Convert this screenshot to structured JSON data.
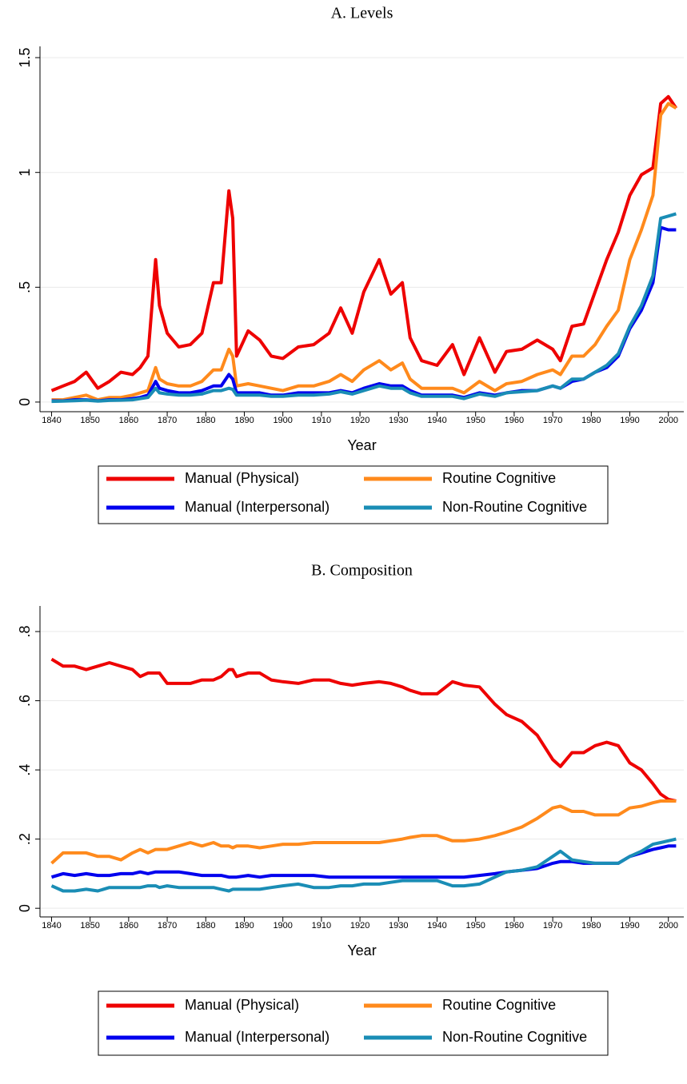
{
  "chart_data": [
    {
      "type": "line",
      "title": "A. Levels",
      "x_label": "Year",
      "grid": true,
      "x": [
        1840,
        1843,
        1846,
        1849,
        1852,
        1855,
        1858,
        1861,
        1863,
        1865,
        1867,
        1868,
        1870,
        1873,
        1876,
        1879,
        1882,
        1884,
        1886,
        1887,
        1888,
        1891,
        1894,
        1897,
        1900,
        1904,
        1908,
        1912,
        1915,
        1918,
        1921,
        1925,
        1928,
        1931,
        1933,
        1936,
        1940,
        1944,
        1947,
        1951,
        1955,
        1958,
        1962,
        1966,
        1970,
        1972,
        1975,
        1978,
        1981,
        1984,
        1987,
        1990,
        1993,
        1996,
        1998,
        2000,
        2002
      ],
      "series": [
        {
          "name": "Manual (Physical)",
          "color": "#ee0000",
          "values": [
            0.05,
            0.07,
            0.09,
            0.13,
            0.06,
            0.09,
            0.13,
            0.12,
            0.15,
            0.2,
            0.62,
            0.42,
            0.3,
            0.24,
            0.25,
            0.3,
            0.52,
            0.52,
            0.92,
            0.8,
            0.2,
            0.31,
            0.27,
            0.2,
            0.19,
            0.24,
            0.25,
            0.3,
            0.41,
            0.3,
            0.48,
            0.62,
            0.47,
            0.52,
            0.28,
            0.18,
            0.16,
            0.25,
            0.12,
            0.28,
            0.13,
            0.22,
            0.23,
            0.27,
            0.23,
            0.18,
            0.33,
            0.34,
            0.48,
            0.62,
            0.74,
            0.9,
            0.99,
            1.02,
            1.3,
            1.33,
            1.28
          ]
        },
        {
          "name": "Routine Cognitive",
          "color": "#ff8a1c",
          "values": [
            0.01,
            0.01,
            0.02,
            0.03,
            0.01,
            0.02,
            0.02,
            0.03,
            0.04,
            0.05,
            0.15,
            0.1,
            0.08,
            0.07,
            0.07,
            0.09,
            0.14,
            0.14,
            0.23,
            0.2,
            0.07,
            0.08,
            0.07,
            0.06,
            0.05,
            0.07,
            0.07,
            0.09,
            0.12,
            0.09,
            0.14,
            0.18,
            0.14,
            0.17,
            0.1,
            0.06,
            0.06,
            0.06,
            0.04,
            0.09,
            0.05,
            0.08,
            0.09,
            0.12,
            0.14,
            0.12,
            0.2,
            0.2,
            0.25,
            0.33,
            0.4,
            0.62,
            0.75,
            0.9,
            1.25,
            1.3,
            1.28
          ]
        },
        {
          "name": "Manual (Interpersonal)",
          "color": "#0000ee",
          "values": [
            0.005,
            0.005,
            0.01,
            0.01,
            0.005,
            0.01,
            0.01,
            0.015,
            0.02,
            0.03,
            0.09,
            0.06,
            0.05,
            0.04,
            0.04,
            0.05,
            0.07,
            0.07,
            0.12,
            0.1,
            0.04,
            0.04,
            0.04,
            0.03,
            0.03,
            0.04,
            0.04,
            0.04,
            0.05,
            0.04,
            0.06,
            0.08,
            0.07,
            0.07,
            0.05,
            0.03,
            0.03,
            0.03,
            0.02,
            0.04,
            0.03,
            0.04,
            0.05,
            0.05,
            0.07,
            0.06,
            0.09,
            0.1,
            0.13,
            0.15,
            0.2,
            0.32,
            0.4,
            0.52,
            0.76,
            0.75,
            0.75
          ]
        },
        {
          "name": "Non-Routine Cognitive",
          "color": "#1a8db5",
          "values": [
            0.003,
            0.004,
            0.006,
            0.008,
            0.004,
            0.007,
            0.008,
            0.01,
            0.015,
            0.02,
            0.06,
            0.04,
            0.035,
            0.03,
            0.03,
            0.035,
            0.05,
            0.05,
            0.06,
            0.055,
            0.03,
            0.03,
            0.03,
            0.025,
            0.025,
            0.03,
            0.03,
            0.035,
            0.045,
            0.035,
            0.05,
            0.07,
            0.06,
            0.06,
            0.04,
            0.025,
            0.025,
            0.025,
            0.015,
            0.035,
            0.025,
            0.04,
            0.045,
            0.05,
            0.07,
            0.06,
            0.1,
            0.1,
            0.13,
            0.16,
            0.21,
            0.33,
            0.42,
            0.55,
            0.8,
            0.81,
            0.82
          ]
        }
      ],
      "xlim": [
        1837,
        2004
      ],
      "ylim": [
        -0.042,
        1.549
      ],
      "xticks": [
        1840,
        1850,
        1860,
        1870,
        1880,
        1890,
        1900,
        1910,
        1920,
        1930,
        1940,
        1950,
        1960,
        1970,
        1980,
        1990,
        2000
      ],
      "yticks": [
        0,
        {
          "value": 0.5,
          "label": ".5"
        },
        1,
        1.5
      ]
    },
    {
      "type": "line",
      "title": "B. Composition",
      "x_label": "Year",
      "grid": true,
      "x": [
        1840,
        1843,
        1846,
        1849,
        1852,
        1855,
        1858,
        1861,
        1863,
        1865,
        1867,
        1868,
        1870,
        1873,
        1876,
        1879,
        1882,
        1884,
        1886,
        1887,
        1888,
        1891,
        1894,
        1897,
        1900,
        1904,
        1908,
        1912,
        1915,
        1918,
        1921,
        1925,
        1928,
        1931,
        1933,
        1936,
        1940,
        1944,
        1947,
        1951,
        1955,
        1958,
        1962,
        1966,
        1970,
        1972,
        1975,
        1978,
        1981,
        1984,
        1987,
        1990,
        1993,
        1996,
        1998,
        2000,
        2002
      ],
      "series": [
        {
          "name": "Manual (Physical)",
          "color": "#ee0000",
          "values": [
            0.72,
            0.7,
            0.7,
            0.69,
            0.7,
            0.71,
            0.7,
            0.69,
            0.67,
            0.68,
            0.68,
            0.68,
            0.65,
            0.65,
            0.65,
            0.66,
            0.66,
            0.67,
            0.69,
            0.69,
            0.67,
            0.68,
            0.68,
            0.66,
            0.655,
            0.65,
            0.66,
            0.66,
            0.65,
            0.645,
            0.65,
            0.655,
            0.65,
            0.64,
            0.63,
            0.62,
            0.62,
            0.655,
            0.645,
            0.64,
            0.59,
            0.56,
            0.54,
            0.5,
            0.43,
            0.41,
            0.45,
            0.45,
            0.47,
            0.48,
            0.47,
            0.42,
            0.4,
            0.36,
            0.33,
            0.315,
            0.31
          ]
        },
        {
          "name": "Routine Cognitive",
          "color": "#ff8a1c",
          "values": [
            0.13,
            0.16,
            0.16,
            0.16,
            0.15,
            0.15,
            0.14,
            0.16,
            0.17,
            0.16,
            0.17,
            0.17,
            0.17,
            0.18,
            0.19,
            0.18,
            0.19,
            0.18,
            0.18,
            0.175,
            0.18,
            0.18,
            0.175,
            0.18,
            0.185,
            0.185,
            0.19,
            0.19,
            0.19,
            0.19,
            0.19,
            0.19,
            0.195,
            0.2,
            0.205,
            0.21,
            0.21,
            0.195,
            0.195,
            0.2,
            0.21,
            0.22,
            0.235,
            0.26,
            0.29,
            0.295,
            0.28,
            0.28,
            0.27,
            0.27,
            0.27,
            0.29,
            0.295,
            0.305,
            0.31,
            0.31,
            0.31
          ]
        },
        {
          "name": "Manual (Interpersonal)",
          "color": "#0000ee",
          "values": [
            0.09,
            0.1,
            0.095,
            0.1,
            0.095,
            0.095,
            0.1,
            0.1,
            0.105,
            0.1,
            0.105,
            0.105,
            0.105,
            0.105,
            0.1,
            0.095,
            0.095,
            0.095,
            0.09,
            0.09,
            0.09,
            0.095,
            0.09,
            0.095,
            0.095,
            0.095,
            0.095,
            0.09,
            0.09,
            0.09,
            0.09,
            0.09,
            0.09,
            0.09,
            0.09,
            0.09,
            0.09,
            0.09,
            0.09,
            0.095,
            0.1,
            0.105,
            0.11,
            0.115,
            0.13,
            0.135,
            0.135,
            0.13,
            0.13,
            0.13,
            0.13,
            0.15,
            0.16,
            0.17,
            0.175,
            0.18,
            0.18
          ]
        },
        {
          "name": "Non-Routine Cognitive",
          "color": "#1a8db5",
          "values": [
            0.065,
            0.05,
            0.05,
            0.055,
            0.05,
            0.06,
            0.06,
            0.06,
            0.06,
            0.065,
            0.065,
            0.06,
            0.065,
            0.06,
            0.06,
            0.06,
            0.06,
            0.055,
            0.05,
            0.055,
            0.055,
            0.055,
            0.055,
            0.06,
            0.065,
            0.07,
            0.06,
            0.06,
            0.065,
            0.065,
            0.07,
            0.07,
            0.075,
            0.08,
            0.08,
            0.08,
            0.08,
            0.065,
            0.065,
            0.07,
            0.09,
            0.105,
            0.11,
            0.12,
            0.15,
            0.165,
            0.14,
            0.135,
            0.13,
            0.13,
            0.13,
            0.15,
            0.165,
            0.185,
            0.19,
            0.195,
            0.2
          ]
        }
      ],
      "xlim": [
        1837,
        2004
      ],
      "ylim": [
        -0.025,
        0.874
      ],
      "xticks": [
        1840,
        1850,
        1860,
        1870,
        1880,
        1890,
        1900,
        1910,
        1920,
        1930,
        1940,
        1950,
        1960,
        1970,
        1980,
        1990,
        2000
      ],
      "yticks": [
        0,
        {
          "value": 0.2,
          "label": ".2"
        },
        {
          "value": 0.4,
          "label": ".4"
        },
        {
          "value": 0.6,
          "label": ".6"
        },
        {
          "value": 0.8,
          "label": ".8"
        }
      ]
    }
  ]
}
